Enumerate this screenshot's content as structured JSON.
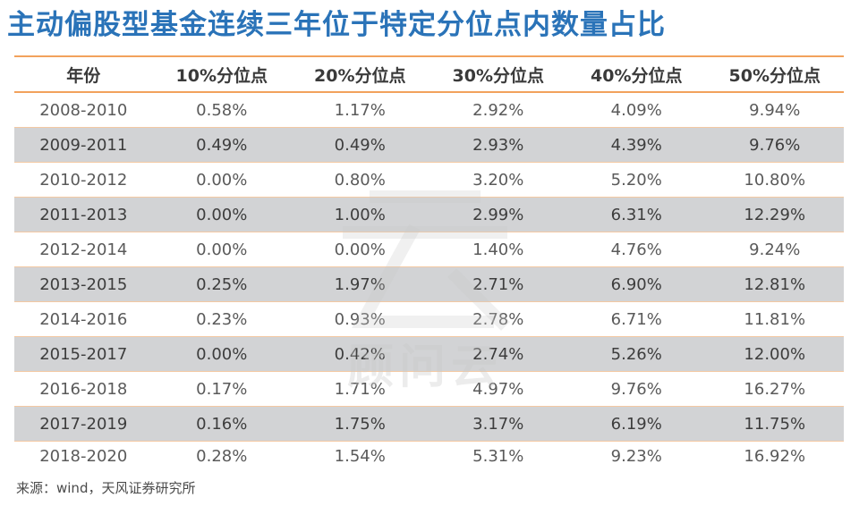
{
  "title": "主动偏股型基金连续三年位于特定分位点内数量占比",
  "table": {
    "headers": [
      "年份",
      "10%分位点",
      "20%分位点",
      "30%分位点",
      "40%分位点",
      "50%分位点"
    ],
    "rows": [
      [
        "2008-2010",
        "0.58%",
        "1.17%",
        "2.92%",
        "4.09%",
        "9.94%"
      ],
      [
        "2009-2011",
        "0.49%",
        "0.49%",
        "2.93%",
        "4.39%",
        "9.76%"
      ],
      [
        "2010-2012",
        "0.00%",
        "0.80%",
        "3.20%",
        "5.20%",
        "10.80%"
      ],
      [
        "2011-2013",
        "0.00%",
        "1.00%",
        "2.99%",
        "6.31%",
        "12.29%"
      ],
      [
        "2012-2014",
        "0.00%",
        "0.00%",
        "1.40%",
        "4.76%",
        "9.24%"
      ],
      [
        "2013-2015",
        "0.25%",
        "1.97%",
        "2.71%",
        "6.90%",
        "12.81%"
      ],
      [
        "2014-2016",
        "0.23%",
        "0.93%",
        "2.78%",
        "6.71%",
        "11.81%"
      ],
      [
        "2015-2017",
        "0.00%",
        "0.42%",
        "2.74%",
        "5.26%",
        "12.00%"
      ],
      [
        "2016-2018",
        "0.17%",
        "1.71%",
        "4.97%",
        "9.76%",
        "16.27%"
      ],
      [
        "2017-2019",
        "0.16%",
        "1.75%",
        "3.17%",
        "6.19%",
        "11.75%"
      ],
      [
        "2018-2020",
        "0.28%",
        "1.54%",
        "5.31%",
        "9.23%",
        "16.92%"
      ]
    ]
  },
  "watermark_text": "顾问云",
  "source": "来源：wind，天风证券研究所",
  "colors": {
    "title": "#2a73b8",
    "rule": "#f2a25c",
    "shaded_row": "#d2d3d5"
  }
}
